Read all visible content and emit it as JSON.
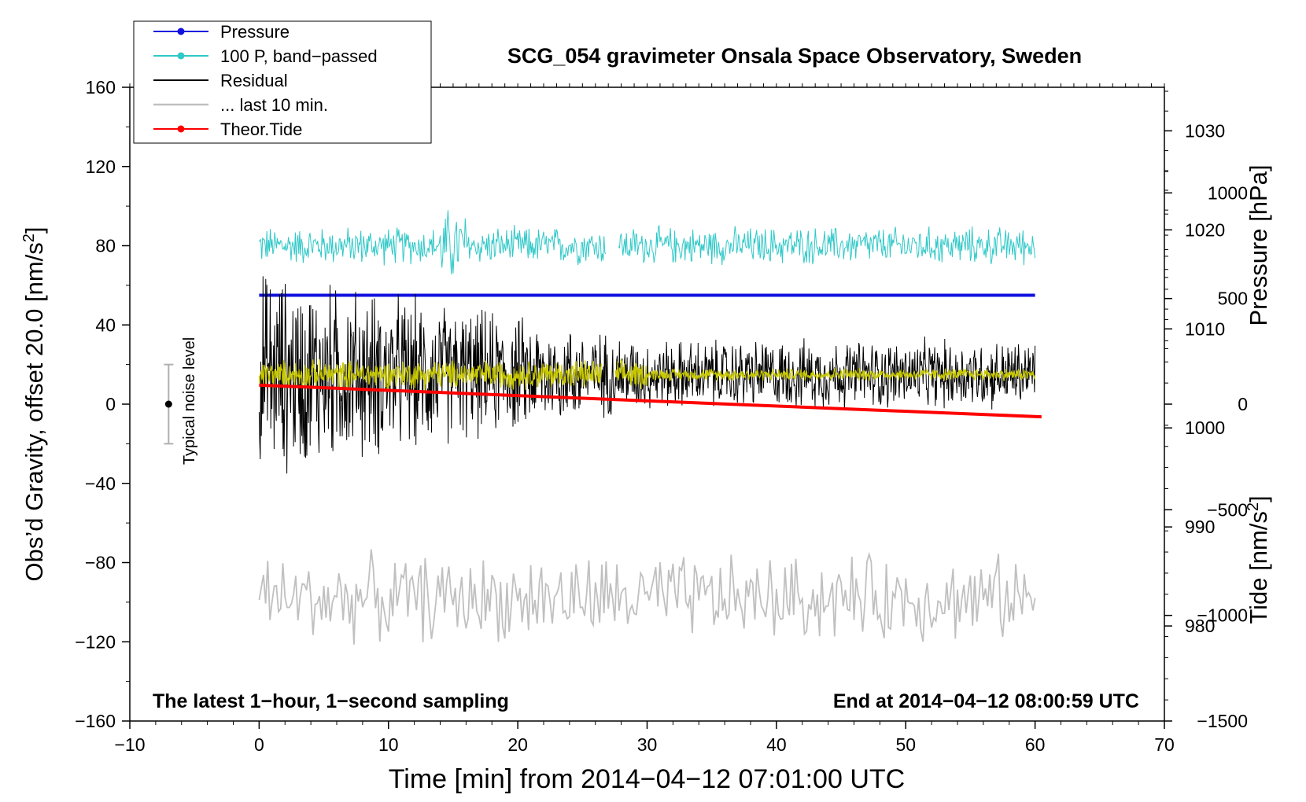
{
  "chart_data": {
    "type": "line",
    "title": "SCG_054 gravimeter Onsala Space Observatory, Sweden",
    "xlabel": "Time [min] from 2014−04−12 07:01:00 UTC",
    "ylabel_left": "Obs’d Gravity, offset 20.0 [nm/s",
    "ylabel_left_unit_sup": "2",
    "ylabel_left_close": "]",
    "ylabel_right_pressure": "Pressure [hPa]",
    "ylabel_right_tide": "Tide [nm/s",
    "ylabel_right_tide_sup": "2",
    "ylabel_right_tide_close": "]",
    "xlim": [
      -10,
      70
    ],
    "ylim": [
      -160,
      160
    ],
    "pressure_lim": [
      970.4,
      1034.4
    ],
    "tide_lim": [
      -1500,
      1500
    ],
    "x_ticks": [
      "−10",
      "0",
      "10",
      "20",
      "30",
      "40",
      "50",
      "60",
      "70"
    ],
    "x_tick_values": [
      -10,
      0,
      10,
      20,
      30,
      40,
      50,
      60,
      70
    ],
    "y_ticks": [
      "−160",
      "−120",
      "−80",
      "−40",
      "0",
      "40",
      "80",
      "120",
      "160"
    ],
    "y_tick_values": [
      -160,
      -120,
      -80,
      -40,
      0,
      40,
      80,
      120,
      160
    ],
    "pressure_ticks": [
      "980",
      "990",
      "1000",
      "1010",
      "1020",
      "1030"
    ],
    "pressure_tick_values": [
      980,
      990,
      1000,
      1010,
      1020,
      1030
    ],
    "tide_ticks": [
      "−1500",
      "−1000",
      "−500",
      "0",
      "500",
      "1000"
    ],
    "tide_tick_values": [
      -1500,
      -1000,
      -500,
      0,
      500,
      1000
    ],
    "legend": [
      {
        "label": "Pressure",
        "color": "#1010e0",
        "marker": true
      },
      {
        "label": "100 P, band−passed",
        "color": "#30c8c8",
        "marker": true
      },
      {
        "label": "Residual",
        "color": "#000000",
        "marker": false
      },
      {
        "label": "... last 10 min.",
        "color": "#c0c0c0",
        "marker": false
      },
      {
        "label": "Theor.Tide",
        "color": "#ff0000",
        "marker": true
      }
    ],
    "annotations": {
      "left_note": "The latest 1−hour, 1−second sampling",
      "right_note": "End at 2014−04−12 08:00:59 UTC",
      "noise_label": "Typical noise level"
    },
    "noise_bar": {
      "x": -7,
      "center": 0,
      "low": -20,
      "high": 20
    },
    "series": [
      {
        "name": "Pressure",
        "color": "#1010e0",
        "x_range": [
          0,
          60
        ],
        "value_hpa": 1013.4
      },
      {
        "name": "100 P, band−passed",
        "color": "#30c8c8",
        "x_range": [
          0,
          60
        ],
        "center": 80,
        "amplitude_approx": 20,
        "gap_min": [
          26.8,
          27.8
        ]
      },
      {
        "name": "Residual",
        "color": "#000000",
        "x_range": [
          0,
          60
        ],
        "center": 15,
        "amplitude_start": 60,
        "amplitude_end": 20
      },
      {
        "name": "Residual (smoothed)",
        "color": "#c8c800",
        "x_range": [
          0,
          60
        ],
        "center": 15,
        "amplitude_approx": 6,
        "gap_min": [
          26.5,
          27.5
        ]
      },
      {
        "name": "... last 10 min.",
        "color": "#c0c0c0",
        "x_range": [
          0,
          60
        ],
        "center": -98,
        "amplitude_approx": 25
      },
      {
        "name": "Theor.Tide",
        "color": "#ff0000",
        "x_range": [
          0,
          60.5
        ],
        "start_nm_s2": 90,
        "end_nm_s2": -60
      }
    ]
  }
}
